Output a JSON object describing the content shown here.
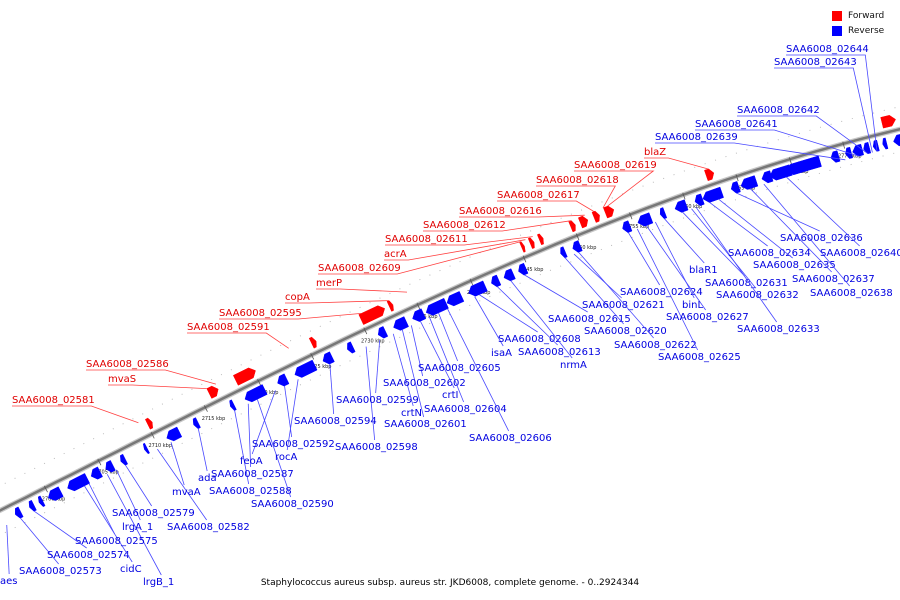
{
  "caption": "Staphylococcus aureus subsp. aureus str. JKD6008, complete genome. - 0..2924344",
  "legend": [
    {
      "label": "Forward",
      "color": "#ff0000"
    },
    {
      "label": "Reverse",
      "color": "#0000ff"
    }
  ],
  "colors": {
    "forward": "#ff0000",
    "reverse": "#0000ff",
    "axis": "#777777"
  },
  "axis_ticks": [
    "2700 kbp",
    "2705 kbp",
    "2710 kbp",
    "2715 kbp",
    "2720 kbp",
    "2725 kbp",
    "2730 kbp",
    "2735 kbp",
    "2740 kbp",
    "2745 kbp",
    "2750 kbp",
    "2755 kbp",
    "2760 kbp",
    "2765 kbp",
    "2770 kbp",
    "2775 kbp"
  ],
  "forward_labels": [
    "SAA6008_02581",
    "mvaS",
    "SAA6008_02586",
    "SAA6008_02591",
    "SAA6008_02595",
    "copA",
    "merP",
    "SAA6008_02609",
    "acrA",
    "SAA6008_02611",
    "SAA6008_02612",
    "SAA6008_02616",
    "SAA6008_02617",
    "SAA6008_02618",
    "SAA6008_02619",
    "blaZ"
  ],
  "reverse_labels": [
    "aes",
    "SAA6008_02573",
    "SAA6008_02574",
    "cidC",
    "lrgB_1",
    "SAA6008_02575",
    "lrgA_1",
    "SAA6008_02579",
    "SAA6008_02582",
    "mvaA",
    "ada",
    "SAA6008_02588",
    "SAA6008_02587",
    "SAA6008_02590",
    "feoA",
    "SAA6008_02592",
    "rocA",
    "SAA6008_02594",
    "SAA6008_02598",
    "SAA6008_02599",
    "crtN",
    "SAA6008_02601",
    "SAA6008_02602",
    "crtI",
    "SAA6008_02604",
    "SAA6008_02605",
    "SAA6008_02606",
    "isaA",
    "SAA6008_02608",
    "SAA6008_02613",
    "nrmA",
    "SAA6008_02615",
    "SAA6008_02620",
    "SAA6008_02621",
    "SAA6008_02622",
    "SAA6008_02624",
    "SAA6008_02625",
    "SAA6008_02627",
    "binL",
    "blaR1",
    "SAA6008_02631",
    "SAA6008_02632",
    "SAA6008_02633",
    "SAA6008_02634",
    "SAA6008_02635",
    "SAA6008_02636",
    "SAA6008_02637",
    "SAA6008_02638",
    "SAA6008_02640",
    "SAA6008_02639",
    "SAA6008_02641",
    "SAA6008_02642",
    "SAA6008_02643",
    "SAA6008_02644"
  ]
}
